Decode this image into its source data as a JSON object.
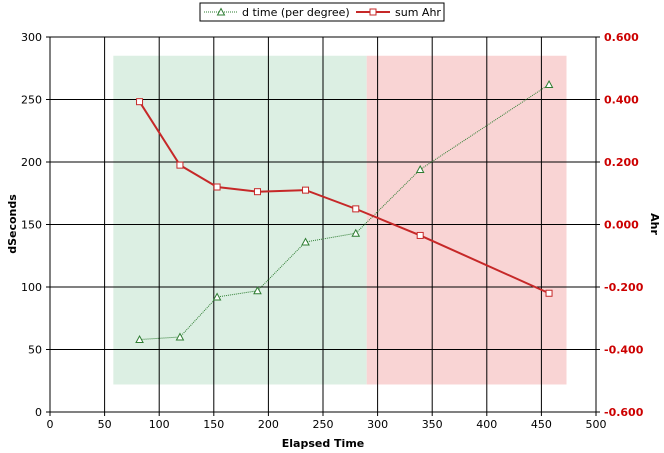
{
  "chart_data": {
    "type": "line",
    "xlabel": "Elapsed Time",
    "ylabel": "dSeconds",
    "y2label": "Ahr",
    "xlim": [
      0,
      500
    ],
    "ylim": [
      0,
      300
    ],
    "y2lim": [
      -0.6,
      0.6
    ],
    "xticks": [
      "0",
      "50",
      "100",
      "150",
      "200",
      "250",
      "300",
      "350",
      "400",
      "450",
      "500"
    ],
    "yticks": [
      "0",
      "50",
      "100",
      "150",
      "200",
      "250",
      "300"
    ],
    "y2ticks": [
      "-0.600",
      "-0.400",
      "-0.200",
      "0.000",
      "0.200",
      "0.400",
      "0.600"
    ],
    "grid": true,
    "legend_position": "top",
    "shaded_regions": [
      {
        "x": [
          58,
          290
        ],
        "y": [
          22,
          285
        ],
        "color": "#dcefe3"
      },
      {
        "x": [
          290,
          473
        ],
        "y": [
          22,
          285
        ],
        "color": "#f9d4d4"
      }
    ],
    "series": [
      {
        "name": "d time (per degree)",
        "axis": "left",
        "color": "#2e7d32",
        "marker": "triangle",
        "x": [
          82,
          119,
          153,
          190,
          234,
          280,
          339,
          457
        ],
        "y": [
          58,
          60,
          92,
          97,
          136,
          143,
          194,
          262
        ]
      },
      {
        "name": "sum Ahr",
        "axis": "right",
        "color": "#c62828",
        "marker": "square",
        "x": [
          82,
          119,
          153,
          190,
          234,
          280,
          339,
          457
        ],
        "y": [
          0.393,
          0.19,
          0.12,
          0.105,
          0.11,
          0.05,
          -0.035,
          -0.22
        ]
      }
    ]
  },
  "colors": {
    "right_axis": "#cc0000"
  }
}
